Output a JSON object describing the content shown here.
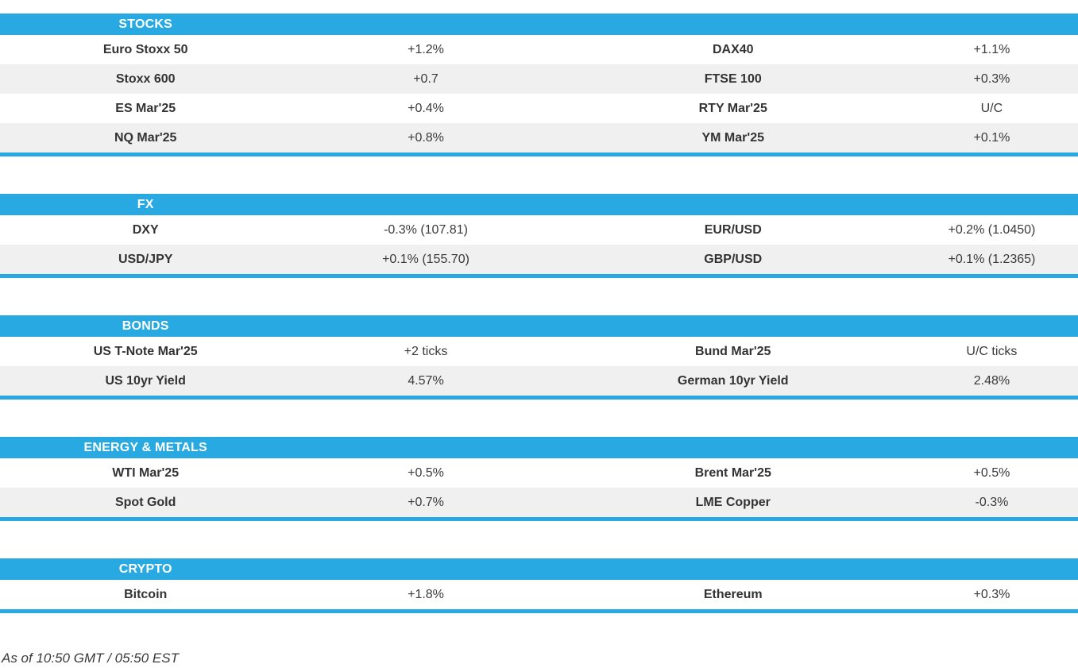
{
  "page": {
    "accent_color": "#29A9E1",
    "row_alt_color": "#F0F0F1",
    "footnote": "As of 10:50 GMT / 05:50 EST"
  },
  "sections": [
    {
      "title": "STOCKS",
      "rows": [
        {
          "cells": [
            "Euro Stoxx 50",
            "+1.2%",
            "DAX40",
            "+1.1%"
          ]
        },
        {
          "cells": [
            "Stoxx 600",
            "+0.7",
            "FTSE 100",
            "+0.3%"
          ]
        },
        {
          "cells": [
            "ES Mar'25",
            "+0.4%",
            "RTY Mar'25",
            "U/C"
          ]
        },
        {
          "cells": [
            "NQ Mar'25",
            "+0.8%",
            "YM Mar'25",
            "+0.1%"
          ]
        }
      ]
    },
    {
      "title": "FX",
      "rows": [
        {
          "cells": [
            "DXY",
            "-0.3% (107.81)",
            "EUR/USD",
            "+0.2% (1.0450)"
          ]
        },
        {
          "cells": [
            "USD/JPY",
            "+0.1% (155.70)",
            "GBP/USD",
            "+0.1% (1.2365)"
          ]
        }
      ]
    },
    {
      "title": "BONDS",
      "rows": [
        {
          "cells": [
            "US T-Note Mar'25",
            "+2 ticks",
            "Bund Mar'25",
            "U/C ticks"
          ]
        },
        {
          "cells": [
            "US 10yr Yield",
            "4.57%",
            "German 10yr Yield",
            "2.48%"
          ]
        }
      ]
    },
    {
      "title": "ENERGY & METALS",
      "rows": [
        {
          "cells": [
            "WTI Mar'25",
            "+0.5%",
            "Brent Mar'25",
            "+0.5%"
          ]
        },
        {
          "cells": [
            "Spot Gold",
            "+0.7%",
            "LME Copper",
            "-0.3%"
          ]
        }
      ]
    },
    {
      "title": "CRYPTO",
      "rows": [
        {
          "cells": [
            "Bitcoin",
            "+1.8%",
            "Ethereum",
            "+0.3%"
          ]
        }
      ]
    }
  ]
}
